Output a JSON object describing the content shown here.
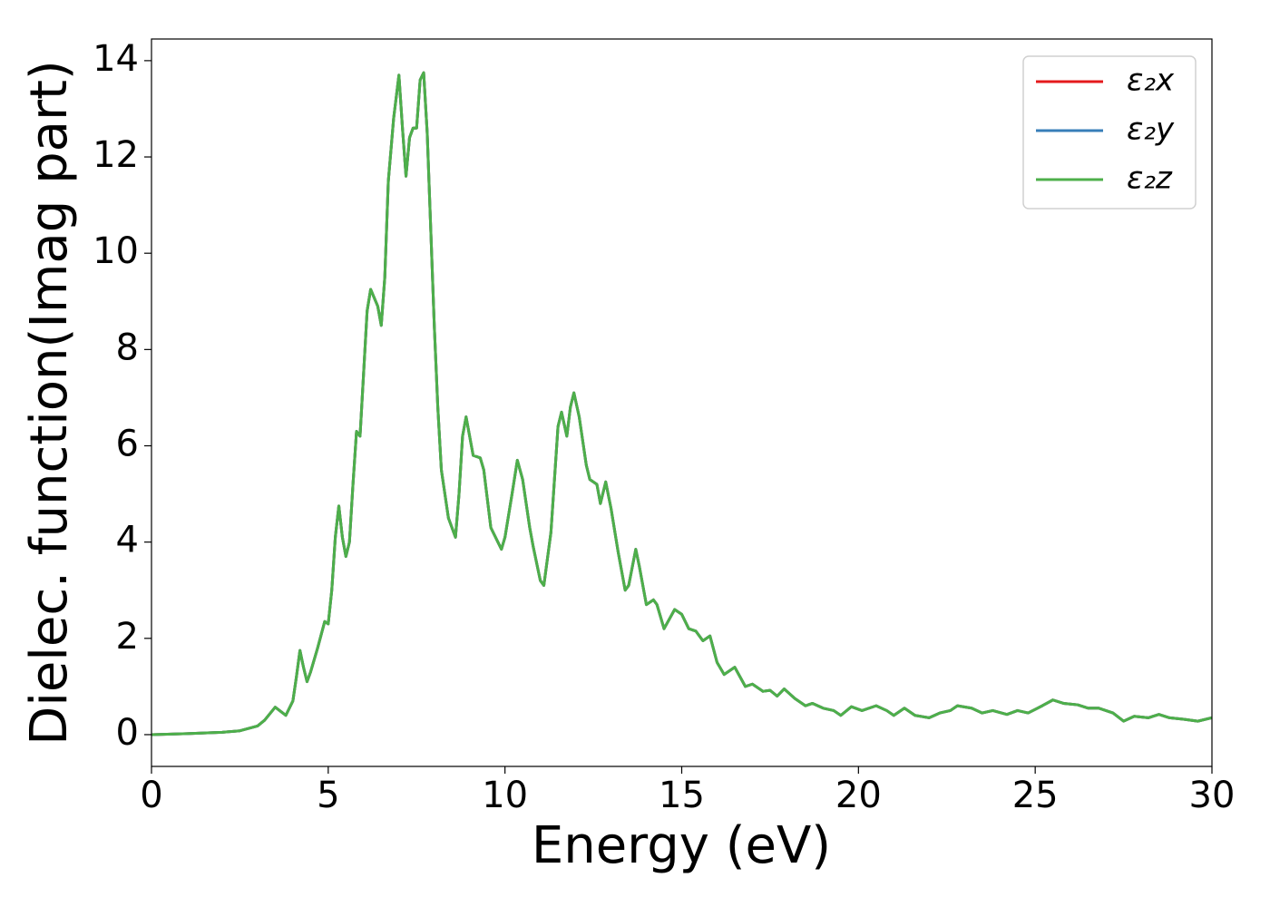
{
  "chart_data": {
    "type": "line",
    "xlabel": "Energy (eV)",
    "ylabel": "Dielec. function(Imag part)",
    "x": [
      0,
      1,
      2,
      2.5,
      3,
      3.2,
      3.5,
      3.8,
      4.0,
      4.1,
      4.2,
      4.3,
      4.4,
      4.5,
      4.7,
      4.9,
      5.0,
      5.1,
      5.2,
      5.3,
      5.4,
      5.5,
      5.6,
      5.7,
      5.8,
      5.9,
      6.0,
      6.1,
      6.2,
      6.4,
      6.5,
      6.6,
      6.7,
      6.85,
      7.0,
      7.1,
      7.2,
      7.3,
      7.4,
      7.5,
      7.6,
      7.7,
      7.8,
      7.9,
      8.0,
      8.1,
      8.2,
      8.4,
      8.6,
      8.7,
      8.8,
      8.9,
      9.0,
      9.1,
      9.3,
      9.4,
      9.6,
      9.8,
      9.9,
      10.0,
      10.2,
      10.35,
      10.5,
      10.7,
      10.8,
      11.0,
      11.1,
      11.3,
      11.5,
      11.6,
      11.75,
      11.85,
      11.95,
      12.1,
      12.3,
      12.4,
      12.6,
      12.7,
      12.85,
      13.0,
      13.2,
      13.4,
      13.5,
      13.7,
      13.8,
      14.0,
      14.2,
      14.3,
      14.5,
      14.8,
      15.0,
      15.2,
      15.4,
      15.6,
      15.8,
      16.0,
      16.2,
      16.5,
      16.8,
      17.0,
      17.3,
      17.5,
      17.7,
      17.9,
      18.2,
      18.5,
      18.7,
      19.0,
      19.3,
      19.5,
      19.8,
      20.1,
      20.5,
      20.8,
      21.0,
      21.3,
      21.6,
      22.0,
      22.3,
      22.6,
      22.8,
      23.2,
      23.5,
      23.8,
      24.2,
      24.5,
      24.8,
      25.2,
      25.5,
      25.8,
      26.2,
      26.5,
      26.8,
      27.2,
      27.5,
      27.8,
      28.2,
      28.5,
      28.8,
      29.2,
      29.6,
      30.0
    ],
    "series": [
      {
        "name": "ε₂x",
        "color": "#e41a1c",
        "values": [
          0,
          0.02,
          0.05,
          0.08,
          0.18,
          0.3,
          0.57,
          0.4,
          0.7,
          1.2,
          1.75,
          1.4,
          1.1,
          1.3,
          1.8,
          2.35,
          2.3,
          3.0,
          4.1,
          4.75,
          4.1,
          3.7,
          4.0,
          5.2,
          6.3,
          6.2,
          7.5,
          8.8,
          9.25,
          8.9,
          8.5,
          9.5,
          11.5,
          12.8,
          13.7,
          12.6,
          11.6,
          12.4,
          12.6,
          12.6,
          13.6,
          13.75,
          12.5,
          10.5,
          8.5,
          6.8,
          5.5,
          4.5,
          4.1,
          5.0,
          6.2,
          6.6,
          6.2,
          5.8,
          5.75,
          5.5,
          4.3,
          4.0,
          3.85,
          4.1,
          5.0,
          5.7,
          5.3,
          4.3,
          3.9,
          3.2,
          3.1,
          4.2,
          6.4,
          6.7,
          6.2,
          6.8,
          7.1,
          6.6,
          5.6,
          5.3,
          5.2,
          4.8,
          5.25,
          4.7,
          3.8,
          3.0,
          3.1,
          3.85,
          3.5,
          2.7,
          2.8,
          2.7,
          2.2,
          2.6,
          2.5,
          2.2,
          2.15,
          1.95,
          2.05,
          1.5,
          1.25,
          1.4,
          1.0,
          1.05,
          0.9,
          0.92,
          0.8,
          0.95,
          0.75,
          0.6,
          0.65,
          0.55,
          0.5,
          0.4,
          0.58,
          0.5,
          0.6,
          0.5,
          0.4,
          0.55,
          0.4,
          0.35,
          0.45,
          0.5,
          0.6,
          0.55,
          0.45,
          0.5,
          0.42,
          0.5,
          0.45,
          0.6,
          0.72,
          0.65,
          0.62,
          0.55,
          0.55,
          0.45,
          0.28,
          0.38,
          0.35,
          0.42,
          0.35,
          0.32,
          0.28,
          0.35
        ]
      },
      {
        "name": "ε₂y",
        "color": "#377eb8",
        "values": [
          0,
          0.02,
          0.05,
          0.08,
          0.18,
          0.3,
          0.57,
          0.4,
          0.7,
          1.2,
          1.75,
          1.4,
          1.1,
          1.3,
          1.8,
          2.35,
          2.3,
          3.0,
          4.1,
          4.75,
          4.1,
          3.7,
          4.0,
          5.2,
          6.3,
          6.2,
          7.5,
          8.8,
          9.25,
          8.9,
          8.5,
          9.5,
          11.5,
          12.8,
          13.7,
          12.6,
          11.6,
          12.4,
          12.6,
          12.6,
          13.6,
          13.75,
          12.5,
          10.5,
          8.5,
          6.8,
          5.5,
          4.5,
          4.1,
          5.0,
          6.2,
          6.6,
          6.2,
          5.8,
          5.75,
          5.5,
          4.3,
          4.0,
          3.85,
          4.1,
          5.0,
          5.7,
          5.3,
          4.3,
          3.9,
          3.2,
          3.1,
          4.2,
          6.4,
          6.7,
          6.2,
          6.8,
          7.1,
          6.6,
          5.6,
          5.3,
          5.2,
          4.8,
          5.25,
          4.7,
          3.8,
          3.0,
          3.1,
          3.85,
          3.5,
          2.7,
          2.8,
          2.7,
          2.2,
          2.6,
          2.5,
          2.2,
          2.15,
          1.95,
          2.05,
          1.5,
          1.25,
          1.4,
          1.0,
          1.05,
          0.9,
          0.92,
          0.8,
          0.95,
          0.75,
          0.6,
          0.65,
          0.55,
          0.5,
          0.4,
          0.58,
          0.5,
          0.6,
          0.5,
          0.4,
          0.55,
          0.4,
          0.35,
          0.45,
          0.5,
          0.6,
          0.55,
          0.45,
          0.5,
          0.42,
          0.5,
          0.45,
          0.6,
          0.72,
          0.65,
          0.62,
          0.55,
          0.55,
          0.45,
          0.28,
          0.38,
          0.35,
          0.42,
          0.35,
          0.32,
          0.28,
          0.35
        ]
      },
      {
        "name": "ε₂z",
        "color": "#4daf4a",
        "values": [
          0,
          0.02,
          0.05,
          0.08,
          0.18,
          0.3,
          0.57,
          0.4,
          0.7,
          1.2,
          1.75,
          1.4,
          1.1,
          1.3,
          1.8,
          2.35,
          2.3,
          3.0,
          4.1,
          4.75,
          4.1,
          3.7,
          4.0,
          5.2,
          6.3,
          6.2,
          7.5,
          8.8,
          9.25,
          8.9,
          8.5,
          9.5,
          11.5,
          12.8,
          13.7,
          12.6,
          11.6,
          12.4,
          12.6,
          12.6,
          13.6,
          13.75,
          12.5,
          10.5,
          8.5,
          6.8,
          5.5,
          4.5,
          4.1,
          5.0,
          6.2,
          6.6,
          6.2,
          5.8,
          5.75,
          5.5,
          4.3,
          4.0,
          3.85,
          4.1,
          5.0,
          5.7,
          5.3,
          4.3,
          3.9,
          3.2,
          3.1,
          4.2,
          6.4,
          6.7,
          6.2,
          6.8,
          7.1,
          6.6,
          5.6,
          5.3,
          5.2,
          4.8,
          5.25,
          4.7,
          3.8,
          3.0,
          3.1,
          3.85,
          3.5,
          2.7,
          2.8,
          2.7,
          2.2,
          2.6,
          2.5,
          2.2,
          2.15,
          1.95,
          2.05,
          1.5,
          1.25,
          1.4,
          1.0,
          1.05,
          0.9,
          0.92,
          0.8,
          0.95,
          0.75,
          0.6,
          0.65,
          0.55,
          0.5,
          0.4,
          0.58,
          0.5,
          0.6,
          0.5,
          0.4,
          0.55,
          0.4,
          0.35,
          0.45,
          0.5,
          0.6,
          0.55,
          0.45,
          0.5,
          0.42,
          0.5,
          0.45,
          0.6,
          0.72,
          0.65,
          0.62,
          0.55,
          0.55,
          0.45,
          0.28,
          0.38,
          0.35,
          0.42,
          0.35,
          0.32,
          0.28,
          0.35
        ]
      }
    ],
    "xlim": [
      0,
      30
    ],
    "xticks": [
      0,
      5,
      10,
      15,
      20,
      25,
      30
    ],
    "ylim": [
      -0.66,
      14.45
    ],
    "yticks": [
      0,
      2,
      4,
      6,
      8,
      10,
      12,
      14
    ],
    "legend": "upper right",
    "grid": false
  }
}
